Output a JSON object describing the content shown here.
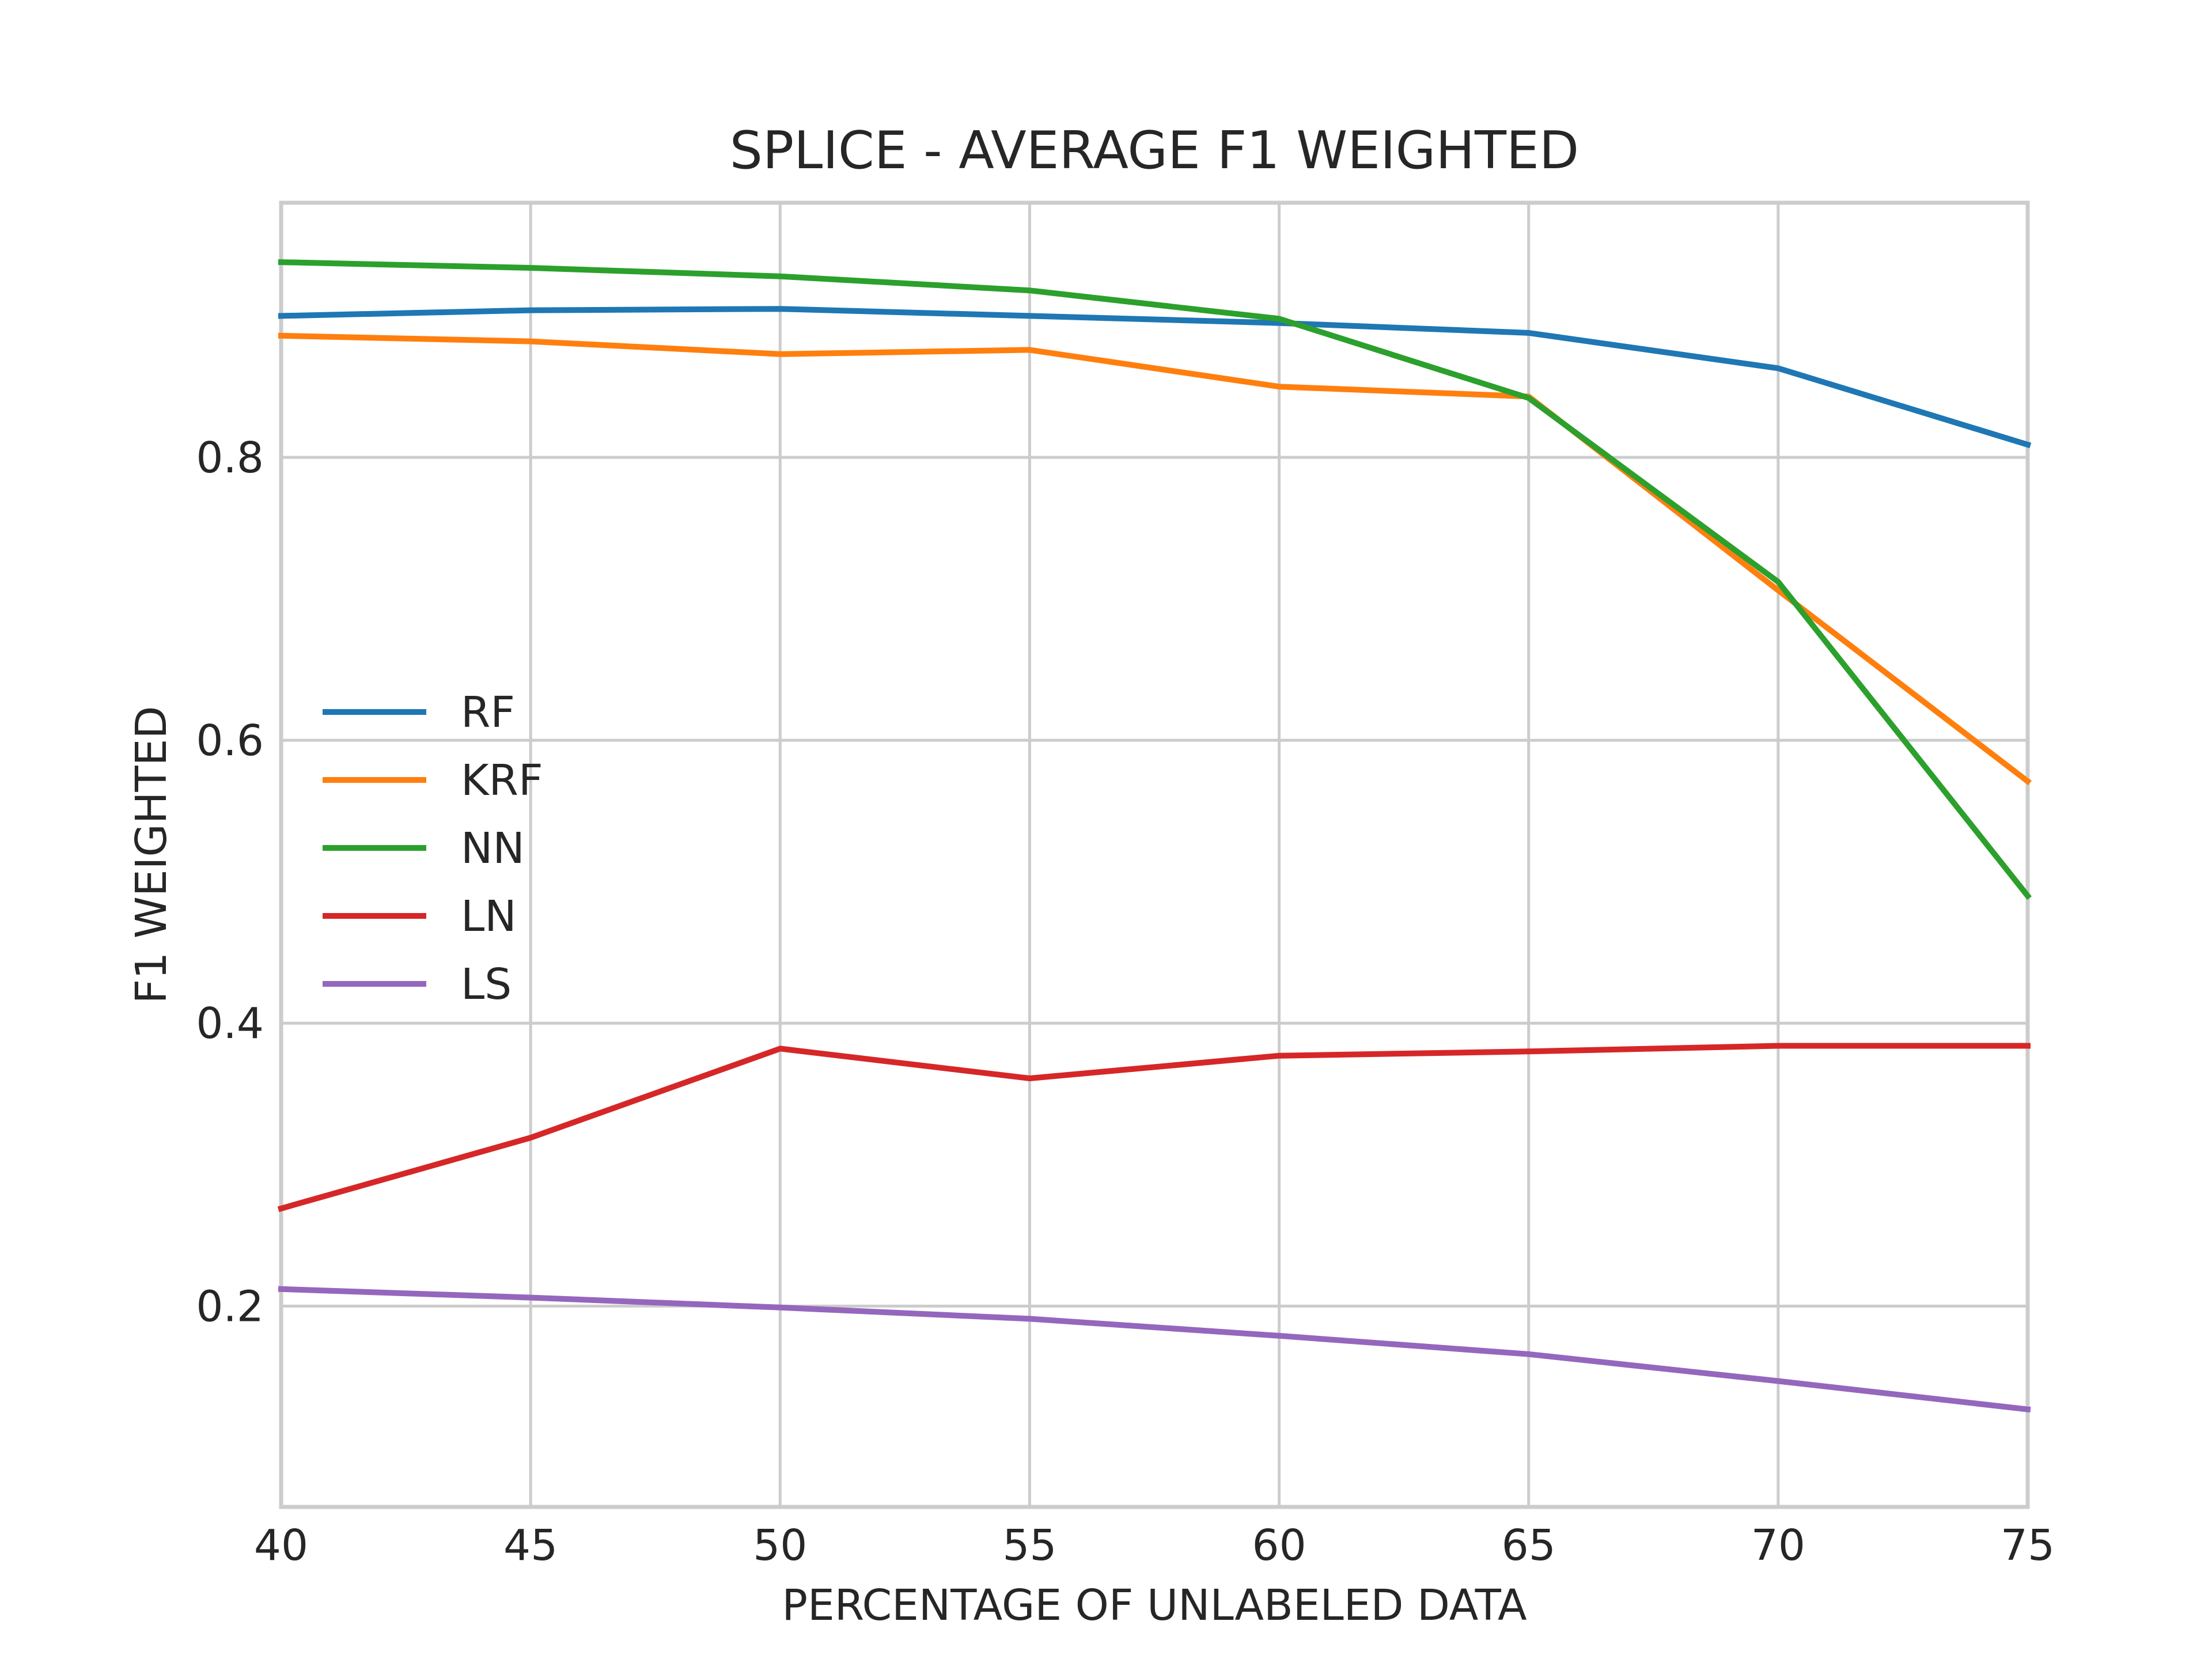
{
  "chart_data": {
    "type": "line",
    "title": "SPLICE - AVERAGE F1 WEIGHTED",
    "xlabel": "PERCENTAGE OF UNLABELED DATA",
    "ylabel": "F1 WEIGHTED",
    "x": [
      40,
      45,
      50,
      55,
      60,
      65,
      70,
      75
    ],
    "xlim": [
      40,
      75
    ],
    "ylim": [
      0.058,
      0.98
    ],
    "xticks": [
      40,
      45,
      50,
      55,
      60,
      65,
      70,
      75
    ],
    "yticks": [
      0.2,
      0.4,
      0.6,
      0.8
    ],
    "xtick_labels": [
      "40",
      "45",
      "50",
      "55",
      "60",
      "65",
      "70",
      "75"
    ],
    "ytick_labels": [
      "0.2",
      "0.4",
      "0.6",
      "0.8"
    ],
    "grid": true,
    "legend_position": "center-left",
    "series": [
      {
        "name": "RF",
        "color": "#1f77b4",
        "values": [
          0.9,
          0.904,
          0.905,
          0.9,
          0.895,
          0.888,
          0.863,
          0.809
        ]
      },
      {
        "name": "KRF",
        "color": "#ff7f0e",
        "values": [
          0.886,
          0.882,
          0.873,
          0.876,
          0.85,
          0.843,
          0.706,
          0.571
        ]
      },
      {
        "name": "NN",
        "color": "#2ca02c",
        "values": [
          0.938,
          0.934,
          0.928,
          0.918,
          0.898,
          0.842,
          0.712,
          0.49
        ]
      },
      {
        "name": "LN",
        "color": "#d62728",
        "values": [
          0.269,
          0.319,
          0.382,
          0.361,
          0.377,
          0.38,
          0.384,
          0.384
        ]
      },
      {
        "name": "LS",
        "color": "#9467bd",
        "values": [
          0.212,
          0.206,
          0.199,
          0.191,
          0.179,
          0.166,
          0.147,
          0.127
        ]
      }
    ]
  }
}
